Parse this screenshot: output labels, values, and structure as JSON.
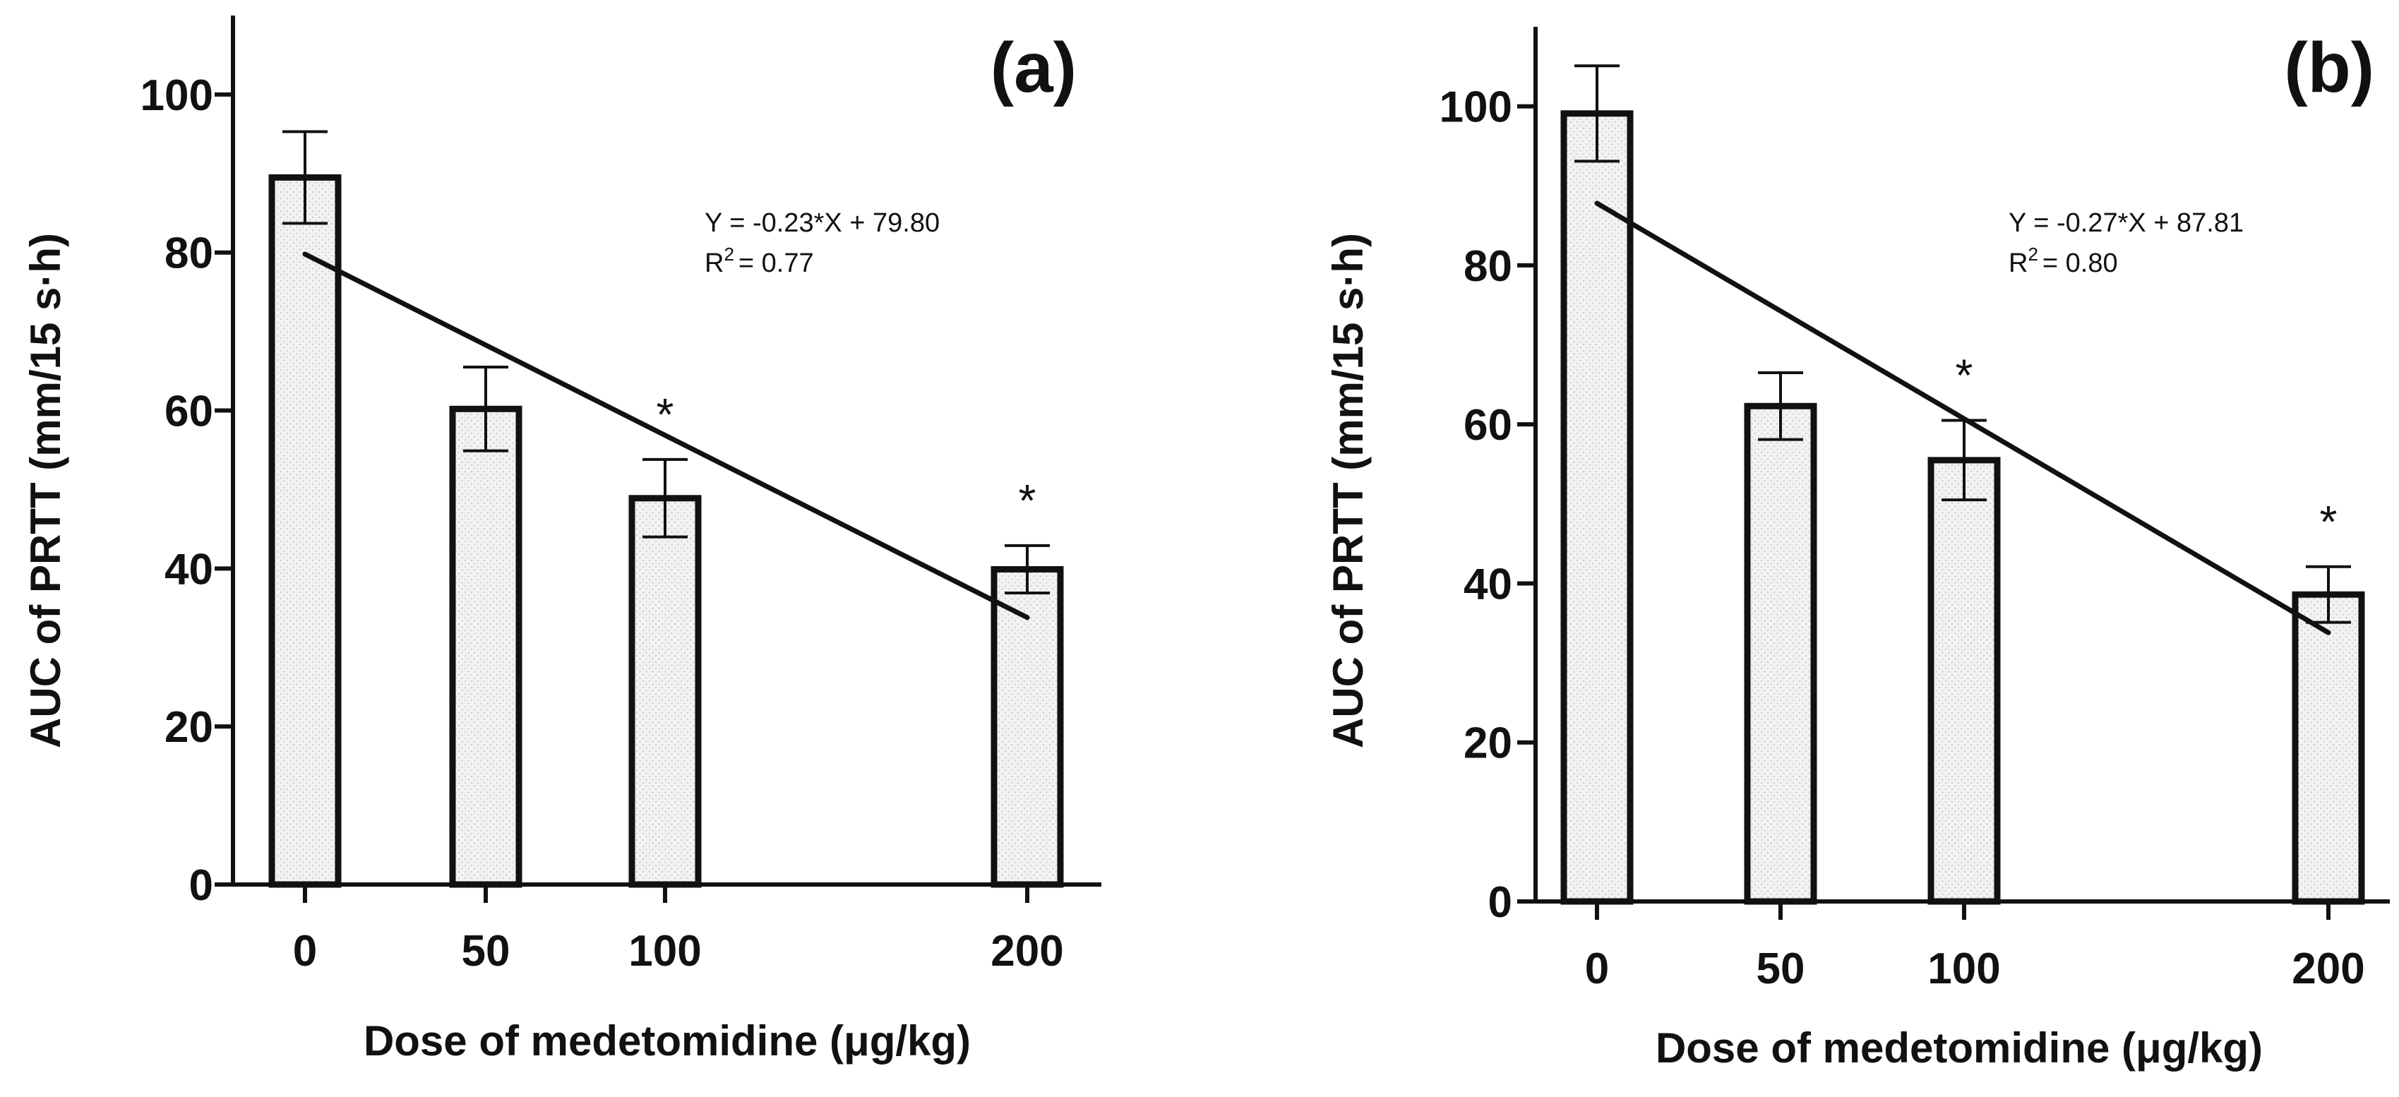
{
  "colors": {
    "ink": "#111111",
    "bar_fill": "#f2f2f2",
    "dot": "#c9c9c9",
    "background": "#ffffff"
  },
  "chart_data": [
    {
      "panel_label": "(a)",
      "type": "bar",
      "categories": [
        "0",
        "50",
        "100",
        "200"
      ],
      "x": [
        0,
        50,
        100,
        200
      ],
      "values": [
        89.5,
        60.2,
        48.9,
        39.9
      ],
      "errors": [
        5.8,
        5.3,
        4.9,
        3.0
      ],
      "significance": [
        "",
        "",
        "*",
        "*"
      ],
      "regression": {
        "slope": -0.23,
        "intercept": 79.8,
        "x_range": [
          0,
          200
        ]
      },
      "annotation": {
        "equation": "Y = -0.23*X + 79.80",
        "r2_prefix": "R",
        "r2_superscript": "2",
        "r2_value": "= 0.77"
      },
      "ylabel": "AUC of PRTT (mm/15 s·h)",
      "xlabel": "Dose of medetomidine (μg/kg)",
      "ylim": [
        0,
        110
      ],
      "yticks": [
        0,
        20,
        40,
        60,
        80,
        100
      ]
    },
    {
      "panel_label": "(b)",
      "type": "bar",
      "categories": [
        "0",
        "50",
        "100",
        "200"
      ],
      "x": [
        0,
        50,
        100,
        200
      ],
      "values": [
        99.1,
        62.3,
        55.5,
        38.6
      ],
      "errors": [
        6.0,
        4.2,
        5.0,
        3.5
      ],
      "significance": [
        "",
        "",
        "*",
        "*"
      ],
      "regression": {
        "slope": -0.27,
        "intercept": 87.81,
        "x_range": [
          0,
          200
        ]
      },
      "annotation": {
        "equation": "Y = -0.27*X + 87.81",
        "r2_prefix": "R",
        "r2_superscript": "2",
        "r2_value": "= 0.80"
      },
      "ylabel": "AUC of PRTT (mm/15 s·h)",
      "xlabel": "Dose of medetomidine (μg/kg)",
      "ylim": [
        0,
        110
      ],
      "yticks": [
        0,
        20,
        40,
        60,
        80,
        100
      ]
    }
  ]
}
